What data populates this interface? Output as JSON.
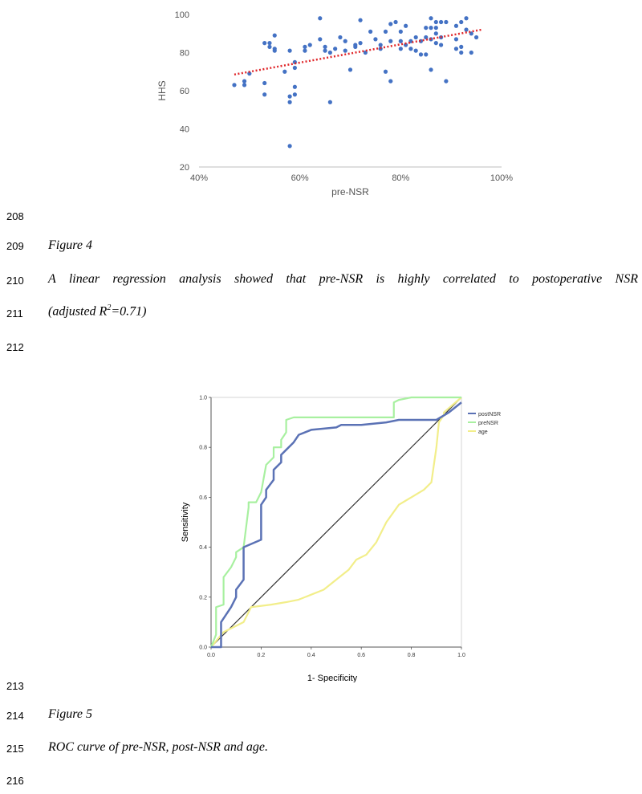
{
  "line_numbers": [
    "208",
    "209",
    "210",
    "211",
    "212",
    "213",
    "214",
    "215",
    "216"
  ],
  "figure4": {
    "label": "Figure 4",
    "caption_line1": "A linear regression analysis showed that pre-NSR is highly correlated to postoperative NSR",
    "caption_line2_prefix": "(adjusted R",
    "caption_line2_sup": "2",
    "caption_line2_suffix": "=0.71)"
  },
  "figure5": {
    "label": "Figure 5",
    "caption": "ROC curve of pre-NSR, post-NSR and age."
  },
  "colors": {
    "scatter_points": "#4472c4",
    "trendline": "#e0262a",
    "postNSR": "#5b72b5",
    "preNSR": "#a8f0a0",
    "age": "#f2ee8a",
    "diagonal": "#333333"
  },
  "chart_data": [
    {
      "type": "scatter",
      "title": "",
      "xlabel": "pre-NSR",
      "ylabel": "HHS",
      "xlim": [
        40,
        100
      ],
      "ylim": [
        20,
        100
      ],
      "x_ticks": [
        "40%",
        "60%",
        "80%",
        "100%"
      ],
      "y_ticks": [
        "20",
        "40",
        "60",
        "80",
        "100"
      ],
      "grid": false,
      "trendline": {
        "style": "dotted",
        "x": [
          47,
          96
        ],
        "y": [
          68.5,
          92
        ]
      },
      "points": [
        [
          47,
          63
        ],
        [
          49,
          65
        ],
        [
          49,
          63
        ],
        [
          50,
          69
        ],
        [
          53,
          85
        ],
        [
          53,
          64
        ],
        [
          53,
          58
        ],
        [
          54,
          85
        ],
        [
          54,
          83
        ],
        [
          55,
          89
        ],
        [
          55,
          82
        ],
        [
          55,
          81
        ],
        [
          57,
          70
        ],
        [
          58,
          81
        ],
        [
          58,
          57
        ],
        [
          58,
          54
        ],
        [
          58,
          31
        ],
        [
          59,
          62
        ],
        [
          59,
          58
        ],
        [
          59,
          75
        ],
        [
          59,
          72
        ],
        [
          61,
          81
        ],
        [
          61,
          83
        ],
        [
          62,
          84
        ],
        [
          64,
          98
        ],
        [
          64,
          87
        ],
        [
          65,
          83
        ],
        [
          65,
          81
        ],
        [
          66,
          80
        ],
        [
          66,
          54
        ],
        [
          67,
          82
        ],
        [
          68,
          88
        ],
        [
          69,
          86
        ],
        [
          69,
          81
        ],
        [
          70,
          71
        ],
        [
          71,
          84
        ],
        [
          71,
          83
        ],
        [
          72,
          97
        ],
        [
          72,
          85
        ],
        [
          73,
          80
        ],
        [
          74,
          91
        ],
        [
          75,
          87
        ],
        [
          76,
          84
        ],
        [
          76,
          82
        ],
        [
          77,
          91
        ],
        [
          77,
          70
        ],
        [
          78,
          86
        ],
        [
          78,
          65
        ],
        [
          78,
          95
        ],
        [
          79,
          96
        ],
        [
          80,
          91
        ],
        [
          80,
          86
        ],
        [
          80,
          82
        ],
        [
          81,
          94
        ],
        [
          81,
          84
        ],
        [
          82,
          82
        ],
        [
          82,
          86
        ],
        [
          83,
          81
        ],
        [
          83,
          88
        ],
        [
          84,
          79
        ],
        [
          84,
          86
        ],
        [
          85,
          88
        ],
        [
          85,
          93
        ],
        [
          85,
          79
        ],
        [
          86,
          98
        ],
        [
          86,
          93
        ],
        [
          86,
          87
        ],
        [
          86,
          71
        ],
        [
          87,
          96
        ],
        [
          87,
          93
        ],
        [
          87,
          90
        ],
        [
          87,
          85
        ],
        [
          88,
          96
        ],
        [
          88,
          88
        ],
        [
          88,
          84
        ],
        [
          89,
          96
        ],
        [
          89,
          65
        ],
        [
          91,
          94
        ],
        [
          91,
          87
        ],
        [
          91,
          82
        ],
        [
          92,
          96
        ],
        [
          92,
          83
        ],
        [
          92,
          80
        ],
        [
          93,
          98
        ],
        [
          93,
          92
        ],
        [
          94,
          90
        ],
        [
          94,
          80
        ],
        [
          95,
          88
        ]
      ]
    },
    {
      "type": "line",
      "title": "",
      "xlabel": "1- Specificity",
      "ylabel": "Sensitivity",
      "xlim": [
        0,
        1
      ],
      "ylim": [
        0,
        1
      ],
      "x_ticks": [
        "0.0",
        "0.2",
        "0.4",
        "0.6",
        "0.8",
        "1.0"
      ],
      "y_ticks": [
        "0.0",
        "0.2",
        "0.4",
        "0.6",
        "0.8",
        "1.0"
      ],
      "legend_position": "top-right",
      "series": [
        {
          "name": "postNSR",
          "x": [
            0,
            0.04,
            0.04,
            0.06,
            0.08,
            0.1,
            0.1,
            0.13,
            0.13,
            0.2,
            0.2,
            0.22,
            0.22,
            0.25,
            0.25,
            0.28,
            0.28,
            0.3,
            0.33,
            0.35,
            0.4,
            0.5,
            0.52,
            0.6,
            0.7,
            0.75,
            0.9,
            0.95,
            1.0
          ],
          "y": [
            0,
            0,
            0.1,
            0.13,
            0.16,
            0.2,
            0.23,
            0.27,
            0.4,
            0.43,
            0.57,
            0.6,
            0.63,
            0.67,
            0.71,
            0.74,
            0.77,
            0.79,
            0.82,
            0.85,
            0.87,
            0.88,
            0.89,
            0.89,
            0.9,
            0.91,
            0.91,
            0.94,
            0.98
          ]
        },
        {
          "name": "preNSR",
          "x": [
            0,
            0.02,
            0.02,
            0.05,
            0.05,
            0.08,
            0.1,
            0.1,
            0.13,
            0.15,
            0.15,
            0.18,
            0.2,
            0.22,
            0.22,
            0.25,
            0.25,
            0.28,
            0.28,
            0.3,
            0.3,
            0.33,
            0.73,
            0.73,
            0.75,
            0.8,
            0.98,
            1.0
          ],
          "y": [
            0,
            0.05,
            0.16,
            0.17,
            0.28,
            0.32,
            0.36,
            0.38,
            0.4,
            0.56,
            0.58,
            0.58,
            0.62,
            0.73,
            0.73,
            0.76,
            0.8,
            0.8,
            0.83,
            0.86,
            0.91,
            0.92,
            0.92,
            0.98,
            0.99,
            1.0,
            1.0,
            1.0
          ]
        },
        {
          "name": "age",
          "x": [
            0,
            0.05,
            0.13,
            0.16,
            0.24,
            0.3,
            0.35,
            0.4,
            0.45,
            0.5,
            0.55,
            0.58,
            0.62,
            0.66,
            0.7,
            0.75,
            0.8,
            0.85,
            0.88,
            0.9,
            0.91,
            0.93,
            0.93,
            1.0
          ],
          "y": [
            0,
            0.06,
            0.1,
            0.16,
            0.17,
            0.18,
            0.19,
            0.21,
            0.23,
            0.27,
            0.31,
            0.35,
            0.37,
            0.42,
            0.5,
            0.57,
            0.6,
            0.63,
            0.66,
            0.8,
            0.9,
            0.93,
            0.94,
            1.0
          ]
        }
      ],
      "reference_line": {
        "x": [
          0,
          1
        ],
        "y": [
          0,
          1
        ]
      }
    }
  ]
}
